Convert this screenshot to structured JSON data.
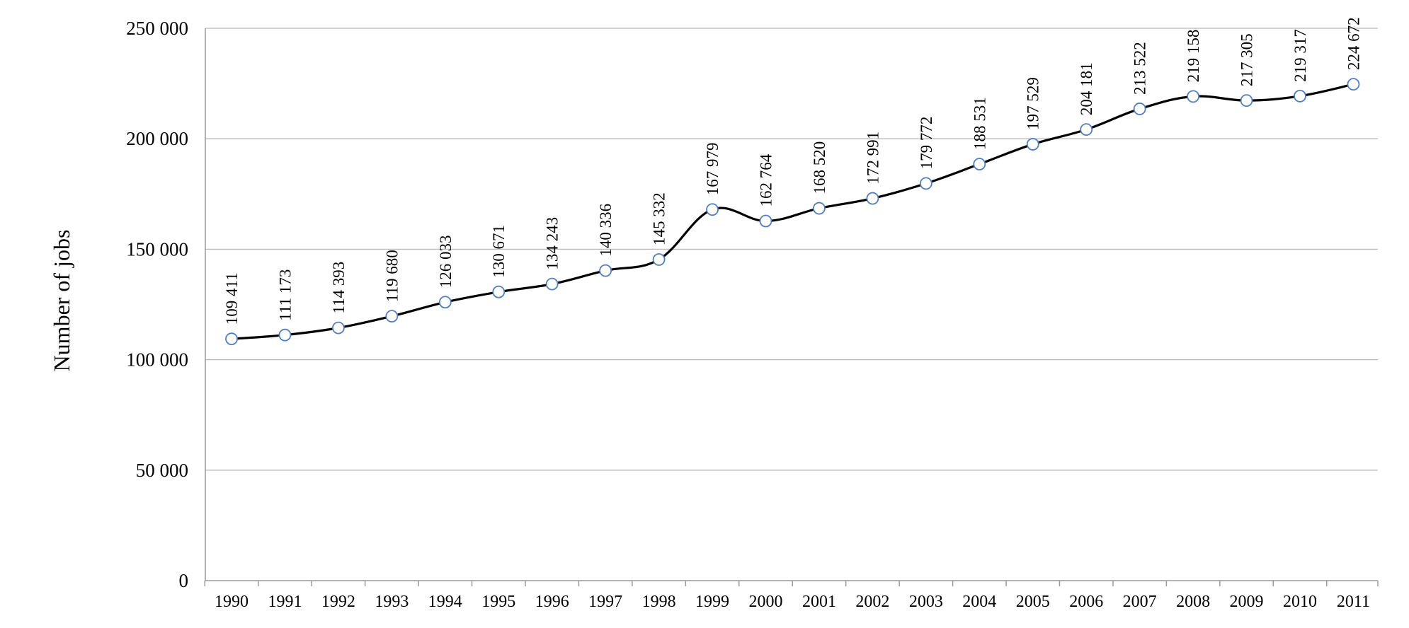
{
  "chart_data": {
    "type": "line",
    "ylabel": "Number of jobs",
    "ylim": [
      0,
      250000
    ],
    "yticks": [
      0,
      50000,
      100000,
      150000,
      200000,
      250000
    ],
    "ytick_labels": [
      "0",
      "50 000",
      "100 000",
      "150 000",
      "200 000",
      "250 000"
    ],
    "categories": [
      "1990",
      "1991",
      "1992",
      "1993",
      "1994",
      "1995",
      "1996",
      "1997",
      "1998",
      "1999",
      "2000",
      "2001",
      "2002",
      "2003",
      "2004",
      "2005",
      "2006",
      "2007",
      "2008",
      "2009",
      "2010",
      "2011"
    ],
    "values": [
      109411,
      111173,
      114393,
      119680,
      126033,
      130671,
      134243,
      140336,
      145332,
      167979,
      162764,
      168520,
      172991,
      179772,
      188531,
      197529,
      204181,
      213522,
      219158,
      217305,
      219317,
      224672
    ],
    "data_labels": [
      "109 411",
      "111 173",
      "114 393",
      "119 680",
      "126 033",
      "130 671",
      "134 243",
      "140 336",
      "145 332",
      "167 979",
      "162 764",
      "168 520",
      "172 991",
      "179 772",
      "188 531",
      "197 529",
      "204 181",
      "213 522",
      "219 158",
      "217 305",
      "219 317",
      "224 672"
    ],
    "grid": true,
    "smooth": true,
    "colors": {
      "line": "#000000",
      "marker_fill": "#ffffff",
      "marker_stroke": "#4f7ec2",
      "grid": "#b9b9b9"
    }
  }
}
